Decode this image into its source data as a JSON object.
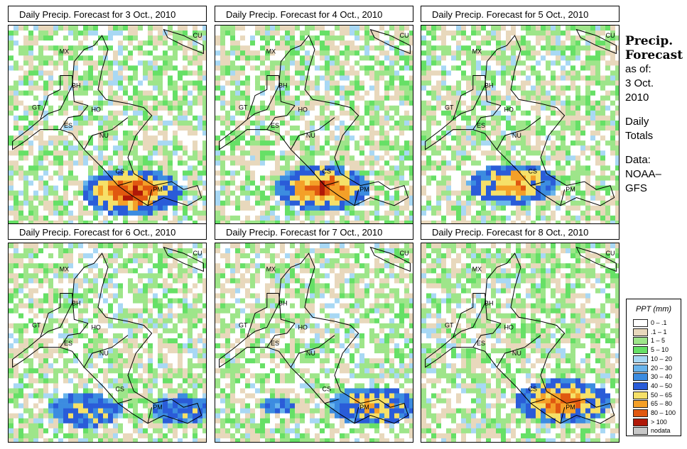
{
  "panels": [
    {
      "title": "Daily Precip. Forecast for  3 Oct., 2010",
      "seed": 3
    },
    {
      "title": "Daily Precip. Forecast for  4 Oct., 2010",
      "seed": 4
    },
    {
      "title": "Daily Precip. Forecast for  5 Oct., 2010",
      "seed": 5
    },
    {
      "title": "Daily Precip. Forecast for  6 Oct., 2010",
      "seed": 6
    },
    {
      "title": "Daily Precip. Forecast for  7 Oct., 2010",
      "seed": 7
    },
    {
      "title": "Daily Precip. Forecast for  8 Oct., 2010",
      "seed": 8
    }
  ],
  "country_labels": {
    "mx": "MX",
    "bh": "BH",
    "gt": "GT",
    "ho": "HO",
    "es": "ES",
    "nu": "NU",
    "cs": "CS",
    "pm": "PM",
    "cu": "CU"
  },
  "side": {
    "title_line1": "Precip.",
    "title_line2": "Forecast",
    "asof": "as of:",
    "date_line1": "3 Oct.",
    "date_line2": "2010",
    "totals_line1": "Daily",
    "totals_line2": "Totals",
    "data_line1": "Data:",
    "data_line2": "NOAA–",
    "data_line3": "GFS"
  },
  "legend": {
    "title": "PPT (mm)",
    "items": [
      {
        "label": "0 – .1",
        "color": "#ffffff"
      },
      {
        "label": ".1 – 1",
        "color": "#e8d8bc"
      },
      {
        "label": "1 – 5",
        "color": "#9ee58a"
      },
      {
        "label": "5 – 10",
        "color": "#66e066"
      },
      {
        "label": "10 – 20",
        "color": "#a8d8f4"
      },
      {
        "label": "20 – 30",
        "color": "#68b4ec"
      },
      {
        "label": "30 – 40",
        "color": "#3c8ce0"
      },
      {
        "label": "40 – 50",
        "color": "#2a5cd8"
      },
      {
        "label": "50 – 65",
        "color": "#f6e068"
      },
      {
        "label": "65 – 80",
        "color": "#f4a028"
      },
      {
        "label": "80 – 100",
        "color": "#e05810"
      },
      {
        "label": "> 100",
        "color": "#b01808"
      },
      {
        "label": "nodata",
        "color": "#c8c8c8"
      }
    ]
  }
}
